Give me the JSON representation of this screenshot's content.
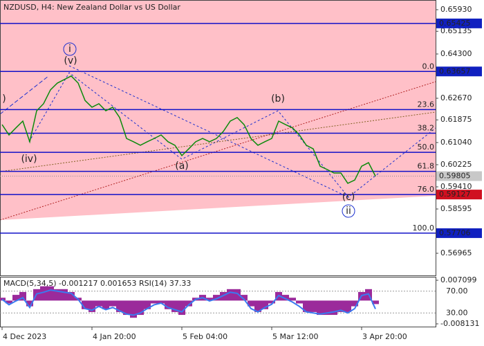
{
  "chart_data": [
    {
      "type": "line",
      "title": "NZDUSD, H4:  New Zealand Dollar vs US Dollar",
      "color": "#0a8a0a",
      "categories": [
        "4 Dec 2023",
        null,
        null,
        null,
        null,
        null,
        null,
        null,
        null,
        null,
        null,
        null,
        null,
        "4 Jan 20:00",
        null,
        null,
        null,
        null,
        null,
        null,
        null,
        null,
        null,
        null,
        null,
        null,
        "5 Feb 04:00",
        null,
        null,
        null,
        null,
        null,
        null,
        null,
        null,
        null,
        null,
        null,
        null,
        "5 Mar 12:00",
        null,
        null,
        null,
        null,
        null,
        null,
        null,
        null,
        null,
        null,
        null,
        null,
        "3 Apr 20:00",
        null,
        null
      ],
      "values": [
        0.617,
        0.6132,
        0.6158,
        0.6183,
        0.6107,
        0.6221,
        0.6247,
        0.6298,
        0.6323,
        0.6336,
        0.6349,
        0.6323,
        0.6259,
        0.6234,
        0.6247,
        0.6221,
        0.6234,
        0.6196,
        0.6119,
        0.6107,
        0.6094,
        0.6107,
        0.6119,
        0.6132,
        0.6107,
        0.6094,
        0.6056,
        0.6081,
        0.6107,
        0.6119,
        0.6107,
        0.6119,
        0.6145,
        0.6183,
        0.6196,
        0.617,
        0.6119,
        0.6094,
        0.6107,
        0.6119,
        0.6183,
        0.617,
        0.6158,
        0.6132,
        0.6094,
        0.6081,
        0.6017,
        0.6005,
        0.5992,
        0.5992,
        0.5954,
        0.5966,
        0.6017,
        0.603,
        0.59805
      ],
      "ylim": [
        0.5615,
        0.66287
      ],
      "yticks": [
        {
          "value": 0.6593,
          "label": "0.65930"
        },
        0.65135,
        {
          "value": 0.643,
          "label": "0.64300"
        },
        {
          "value": 0.6267,
          "label": "0.62670"
        },
        0.61875,
        {
          "value": 0.6104,
          "label": "0.61040"
        },
        0.60225,
        {
          "value": 0.5941,
          "label": "0.59410"
        },
        0.58595,
        0.56965
      ],
      "levels": [
        {
          "value": 0.65425
        },
        {
          "label": "0.0",
          "value": 0.63657
        },
        {
          "label": "23.6",
          "value": 0.62253
        },
        {
          "label": "38.2",
          "value": 0.61384
        },
        {
          "label": "50.0",
          "value": 0.60682
        },
        {
          "label": "61.8",
          "value": 0.59979
        },
        {
          "label": "76.0",
          "value": 0.59127
        },
        {
          "label": "100.0",
          "value": 0.57706
        }
      ],
      "current_price": 0.59805,
      "annotations": [
        ")",
        "(iv)",
        "(v)",
        "i",
        "(a)",
        "(b)",
        "(c)",
        "ii"
      ]
    },
    {
      "type": "indicator",
      "title": "MACD(5,34,5) -0.001217 0.001653 RSI(14) 37.33",
      "series": [
        {
          "name": "MACD",
          "color": "#9b2a9b",
          "values": [
            0.001,
            -0.001,
            0.002,
            0.003,
            -0.002,
            0.004,
            0.005,
            0.005,
            0.004,
            0.004,
            0.003,
            0.001,
            -0.003,
            -0.004,
            -0.002,
            -0.003,
            -0.002,
            -0.004,
            -0.005,
            -0.006,
            -0.005,
            -0.003,
            -0.001,
            -0.001,
            -0.003,
            -0.004,
            -0.005,
            -0.002,
            0.001,
            0.002,
            0.001,
            0.002,
            0.003,
            0.004,
            0.004,
            0.002,
            -0.002,
            -0.004,
            -0.003,
            -0.001,
            0.003,
            0.002,
            0.001,
            -0.001,
            -0.004,
            -0.004,
            -0.005,
            -0.005,
            -0.005,
            -0.004,
            -0.004,
            -0.002,
            0.003,
            0.004,
            -0.001217
          ]
        },
        {
          "name": "RSI",
          "color": "#3a7bf0",
          "axis": "y2",
          "values": [
            55,
            45,
            52,
            58,
            40,
            65,
            68,
            72,
            70,
            68,
            66,
            55,
            38,
            35,
            42,
            36,
            40,
            34,
            28,
            26,
            30,
            38,
            45,
            48,
            40,
            36,
            32,
            45,
            55,
            58,
            52,
            56,
            62,
            68,
            66,
            55,
            38,
            32,
            40,
            46,
            62,
            56,
            50,
            42,
            32,
            30,
            28,
            30,
            32,
            35,
            30,
            38,
            62,
            65,
            37.33
          ]
        }
      ],
      "ylim": [
        -0.008131,
        0.007099
      ],
      "yticks": [
        0.007099,
        -0.008131
      ],
      "y2lim": [
        10,
        90
      ],
      "y2ticks": [
        {
          "value": 70,
          "label": "70.00"
        },
        {
          "value": 30,
          "label": "30.00"
        }
      ]
    }
  ]
}
